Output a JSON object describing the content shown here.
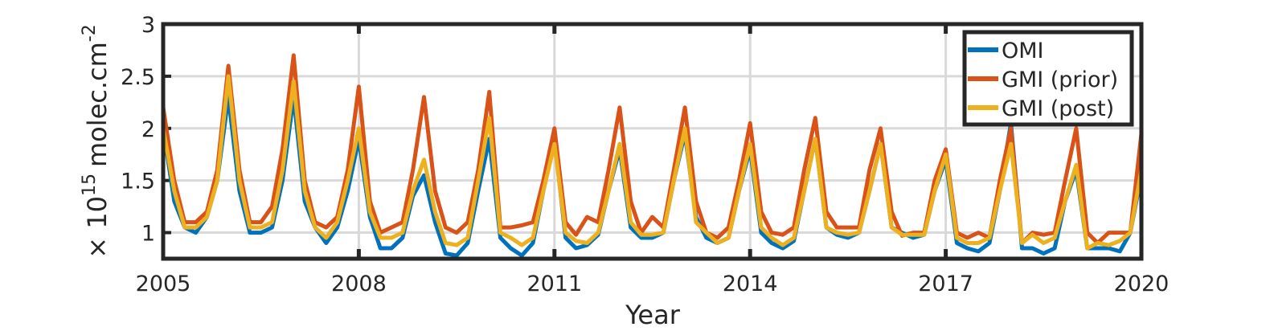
{
  "chart_data": {
    "type": "line",
    "xlabel": "Year",
    "ylabel_prefix": "× 10",
    "ylabel_exp": "15",
    "ylabel_unit": "molec.cm",
    "ylabel_unit_exp": "-2",
    "xlim": [
      2005,
      2020
    ],
    "xticks": [
      2005,
      2008,
      2011,
      2014,
      2017,
      2020
    ],
    "ylim": [
      0.75,
      3
    ],
    "yticks": [
      1,
      1.5,
      2,
      2.5,
      3
    ],
    "grid": true,
    "legend": "upper right",
    "x": [
      2005,
      2005.17,
      2005.33,
      2005.5,
      2005.67,
      2005.83,
      2006,
      2006.17,
      2006.33,
      2006.5,
      2006.67,
      2006.83,
      2007,
      2007.17,
      2007.33,
      2007.5,
      2007.67,
      2007.83,
      2008,
      2008.17,
      2008.33,
      2008.5,
      2008.67,
      2008.83,
      2009,
      2009.17,
      2009.33,
      2009.5,
      2009.67,
      2009.83,
      2010,
      2010.17,
      2010.33,
      2010.5,
      2010.67,
      2010.83,
      2011,
      2011.17,
      2011.33,
      2011.5,
      2011.67,
      2011.83,
      2012,
      2012.17,
      2012.33,
      2012.5,
      2012.67,
      2012.83,
      2013,
      2013.17,
      2013.33,
      2013.5,
      2013.67,
      2013.83,
      2014,
      2014.17,
      2014.33,
      2014.5,
      2014.67,
      2014.83,
      2015,
      2015.17,
      2015.33,
      2015.5,
      2015.67,
      2015.83,
      2016,
      2016.17,
      2016.33,
      2016.5,
      2016.67,
      2016.83,
      2017,
      2017.17,
      2017.33,
      2017.5,
      2017.67,
      2017.83,
      2018,
      2018.17,
      2018.33,
      2018.5,
      2018.67,
      2018.83,
      2019,
      2019.17,
      2019.33,
      2019.5,
      2019.67,
      2019.83,
      2020
    ],
    "series": [
      {
        "name": "OMI",
        "color": "#0072BD",
        "values": [
          2.0,
          1.3,
          1.05,
          1.0,
          1.15,
          1.5,
          2.3,
          1.4,
          1.0,
          1.0,
          1.05,
          1.5,
          2.3,
          1.3,
          1.05,
          0.9,
          1.05,
          1.4,
          1.9,
          1.15,
          0.85,
          0.85,
          0.95,
          1.35,
          1.55,
          1.1,
          0.8,
          0.78,
          0.9,
          1.4,
          1.9,
          0.95,
          0.85,
          0.78,
          0.9,
          1.4,
          1.9,
          0.95,
          0.85,
          0.88,
          0.98,
          1.4,
          1.8,
          1.05,
          0.95,
          0.95,
          1.0,
          1.5,
          1.95,
          1.15,
          0.95,
          0.9,
          0.95,
          1.4,
          1.8,
          1.0,
          0.9,
          0.85,
          0.92,
          1.4,
          1.9,
          1.05,
          0.98,
          0.95,
          1.0,
          1.4,
          1.85,
          1.05,
          1.0,
          0.95,
          0.98,
          1.4,
          1.7,
          0.9,
          0.85,
          0.82,
          0.9,
          1.4,
          2.05,
          0.85,
          0.85,
          0.8,
          0.85,
          1.3,
          1.6,
          0.85,
          0.85,
          0.85,
          0.82,
          1.0,
          1.55
        ]
      },
      {
        "name": "GMI (prior)",
        "color": "#D95319",
        "values": [
          2.2,
          1.5,
          1.1,
          1.1,
          1.2,
          1.6,
          2.6,
          1.6,
          1.1,
          1.1,
          1.25,
          1.8,
          2.7,
          1.5,
          1.1,
          1.05,
          1.15,
          1.6,
          2.4,
          1.3,
          1.0,
          1.05,
          1.1,
          1.6,
          2.3,
          1.4,
          1.05,
          1.0,
          1.1,
          1.6,
          2.35,
          1.05,
          1.05,
          1.07,
          1.1,
          1.5,
          2.0,
          1.1,
          0.98,
          1.15,
          1.1,
          1.6,
          2.2,
          1.3,
          1.0,
          1.15,
          1.05,
          1.6,
          2.2,
          1.3,
          1.0,
          0.95,
          1.05,
          1.5,
          2.05,
          1.2,
          1.0,
          0.98,
          1.05,
          1.6,
          2.1,
          1.2,
          1.05,
          1.05,
          1.05,
          1.6,
          2.0,
          1.2,
          0.97,
          1.0,
          1.0,
          1.5,
          1.8,
          1.0,
          0.95,
          1.0,
          0.95,
          1.5,
          2.0,
          0.9,
          1.0,
          0.98,
          1.0,
          1.5,
          2.0,
          1.0,
          0.9,
          1.0,
          1.0,
          1.0,
          1.95
        ]
      },
      {
        "name": "GMI (post)",
        "color": "#EDB120",
        "values": [
          2.0,
          1.4,
          1.05,
          1.05,
          1.15,
          1.5,
          2.5,
          1.5,
          1.05,
          1.05,
          1.1,
          1.6,
          2.45,
          1.4,
          1.05,
          0.95,
          1.1,
          1.5,
          2.0,
          1.2,
          0.95,
          0.95,
          1.0,
          1.4,
          1.7,
          1.2,
          0.9,
          0.88,
          0.95,
          1.5,
          2.1,
          1.0,
          0.95,
          0.88,
          0.95,
          1.4,
          1.85,
          1.0,
          0.92,
          0.9,
          1.0,
          1.4,
          1.85,
          1.1,
          0.98,
          0.98,
          1.0,
          1.5,
          2.0,
          1.1,
          1.0,
          0.9,
          0.95,
          1.4,
          1.85,
          1.05,
          0.95,
          0.88,
          0.95,
          1.4,
          1.9,
          1.05,
          1.0,
          0.98,
          1.0,
          1.4,
          1.85,
          1.05,
          0.98,
          0.98,
          0.98,
          1.4,
          1.75,
          0.95,
          0.9,
          0.9,
          0.95,
          1.4,
          1.85,
          0.9,
          0.98,
          0.9,
          0.95,
          1.3,
          1.65,
          0.85,
          0.9,
          0.88,
          0.92,
          1.0,
          1.6
        ]
      }
    ]
  }
}
